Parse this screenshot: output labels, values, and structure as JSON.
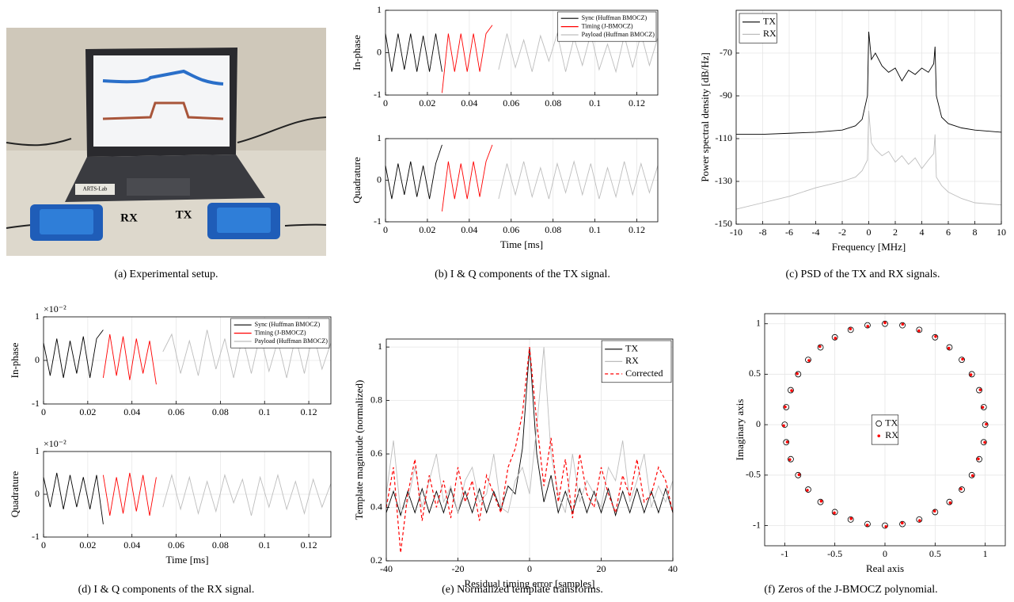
{
  "photo": {
    "caption": "(a) Experimental setup.",
    "labels": {
      "rx": "RX",
      "tx": "TX",
      "lab": "ARTS-Lab"
    }
  },
  "chart_data": [
    {
      "type": "line",
      "ylabel": "In-phase",
      "xlim": [
        0,
        0.13
      ],
      "xticks": [
        0,
        0.02,
        0.04,
        0.06,
        0.08,
        0.1,
        0.12
      ],
      "ylim": [
        -1,
        1
      ],
      "yticks": [
        -1,
        0,
        1
      ],
      "grid": true,
      "legend": "top-right",
      "series": [
        {
          "name": "Sync (Huffman BMOCZ)",
          "color": "#000000",
          "x": [
            0,
            0.003,
            0.006,
            0.009,
            0.012,
            0.015,
            0.018,
            0.021,
            0.024,
            0.027
          ],
          "values": [
            0.45,
            -0.45,
            0.45,
            -0.4,
            0.45,
            -0.45,
            0.4,
            -0.45,
            0.45,
            -0.45
          ]
        },
        {
          "name": "Timing (J-BMOCZ)",
          "color": "#ff0000",
          "x": [
            0.027,
            0.03,
            0.033,
            0.036,
            0.039,
            0.042,
            0.045,
            0.048,
            0.051
          ],
          "values": [
            -0.95,
            0.45,
            -0.45,
            0.45,
            -0.45,
            0.45,
            -0.45,
            0.45,
            0.65
          ]
        },
        {
          "name": "Payload (Huffman BMOCZ)",
          "color": "#bdbdbd",
          "x": [
            0.054,
            0.058,
            0.062,
            0.066,
            0.07,
            0.074,
            0.078,
            0.082,
            0.086,
            0.09,
            0.094,
            0.098,
            0.102,
            0.106,
            0.11,
            0.114,
            0.118,
            0.122,
            0.126,
            0.13
          ],
          "values": [
            -0.4,
            0.45,
            -0.35,
            0.3,
            -0.45,
            0.4,
            -0.2,
            0.45,
            -0.45,
            0.35,
            -0.3,
            0.45,
            -0.4,
            0.2,
            -0.45,
            0.4,
            -0.35,
            0.45,
            -0.3,
            0.35
          ]
        }
      ]
    },
    {
      "type": "line",
      "ylabel": "Quadrature",
      "xlabel": "Time [ms]",
      "caption": "(b) I & Q components of the TX signal.",
      "xlim": [
        0,
        0.13
      ],
      "xticks": [
        0,
        0.02,
        0.04,
        0.06,
        0.08,
        0.1,
        0.12
      ],
      "ylim": [
        -1,
        1
      ],
      "yticks": [
        -1,
        0,
        1
      ],
      "grid": true,
      "series": [
        {
          "color": "#000000",
          "x": [
            0,
            0.003,
            0.006,
            0.009,
            0.012,
            0.015,
            0.018,
            0.021,
            0.024,
            0.027
          ],
          "values": [
            0.35,
            -0.45,
            0.4,
            -0.35,
            0.45,
            -0.4,
            0.35,
            -0.45,
            0.4,
            0.85
          ]
        },
        {
          "color": "#ff0000",
          "x": [
            0.027,
            0.03,
            0.033,
            0.036,
            0.039,
            0.042,
            0.045,
            0.048,
            0.051
          ],
          "values": [
            -0.75,
            0.45,
            -0.45,
            0.4,
            -0.45,
            0.45,
            -0.4,
            0.45,
            0.85
          ]
        },
        {
          "color": "#bdbdbd",
          "x": [
            0.054,
            0.058,
            0.062,
            0.066,
            0.07,
            0.074,
            0.078,
            0.082,
            0.086,
            0.09,
            0.094,
            0.098,
            0.102,
            0.106,
            0.11,
            0.114,
            0.118,
            0.122,
            0.126,
            0.13
          ],
          "values": [
            -0.45,
            0.4,
            -0.35,
            0.45,
            -0.4,
            0.3,
            -0.45,
            0.4,
            -0.3,
            0.45,
            -0.35,
            0.4,
            -0.45,
            0.3,
            -0.4,
            0.45,
            -0.35,
            0.4,
            -0.3,
            0.35
          ]
        }
      ]
    },
    {
      "type": "line",
      "ylabel": "Power spectral density [dB/Hz]",
      "xlabel": "Frequency [MHz]",
      "caption": "(c) PSD of the TX and RX signals.",
      "xlim": [
        -10,
        10
      ],
      "xticks": [
        -10,
        -8,
        -6,
        -4,
        -2,
        0,
        2,
        4,
        6,
        8,
        10
      ],
      "ylim": [
        -150,
        -50
      ],
      "yticks": [
        -150,
        -130,
        -110,
        -90,
        -70
      ],
      "grid": true,
      "legend": "top-left",
      "x": [
        -10,
        -8,
        -6,
        -4,
        -2,
        -1,
        -0.5,
        -0.1,
        0,
        0.2,
        0.5,
        1,
        1.5,
        2,
        2.5,
        3,
        3.5,
        4,
        4.5,
        4.9,
        5,
        5.1,
        5.5,
        6,
        7,
        8,
        10
      ],
      "series": [
        {
          "name": "TX",
          "color": "#000000",
          "values": [
            -108,
            -108,
            -107.5,
            -107,
            -106,
            -104,
            -101,
            -90,
            -60,
            -73,
            -70,
            -76,
            -79,
            -77,
            -83,
            -78,
            -80,
            -77,
            -79,
            -75,
            -67,
            -90,
            -100,
            -103,
            -105,
            -106,
            -107
          ]
        },
        {
          "name": "RX",
          "color": "#bdbdbd",
          "values": [
            -143,
            -140,
            -137,
            -133,
            -130,
            -128,
            -125,
            -120,
            -97,
            -112,
            -115,
            -118,
            -116,
            -121,
            -118,
            -122,
            -119,
            -124,
            -120,
            -117,
            -108,
            -128,
            -132,
            -135,
            -138,
            -140,
            -141
          ]
        }
      ]
    },
    {
      "type": "line",
      "ylabel": "In-phase",
      "y_multiplier": "×10⁻²",
      "xlim": [
        0,
        0.13
      ],
      "xticks": [
        0,
        0.02,
        0.04,
        0.06,
        0.08,
        0.1,
        0.12
      ],
      "ylim": [
        -1,
        1
      ],
      "yticks": [
        -1,
        0,
        1
      ],
      "grid": true,
      "legend": "top-right",
      "series": [
        {
          "name": "Sync (Huffman BMOCZ)",
          "color": "#000000",
          "x": [
            0,
            0.003,
            0.006,
            0.009,
            0.012,
            0.015,
            0.018,
            0.021,
            0.024,
            0.027
          ],
          "values": [
            0.4,
            -0.35,
            0.5,
            -0.4,
            0.45,
            -0.3,
            0.55,
            -0.4,
            0.5,
            0.7
          ]
        },
        {
          "name": "Timing (J-BMOCZ)",
          "color": "#ff0000",
          "x": [
            0.027,
            0.03,
            0.033,
            0.036,
            0.039,
            0.042,
            0.045,
            0.048,
            0.051
          ],
          "values": [
            -0.4,
            0.6,
            -0.35,
            0.55,
            -0.45,
            0.5,
            -0.3,
            0.45,
            -0.55
          ]
        },
        {
          "name": "Payload (Huffman BMOCZ)",
          "color": "#bdbdbd",
          "x": [
            0.054,
            0.058,
            0.062,
            0.066,
            0.07,
            0.074,
            0.078,
            0.082,
            0.086,
            0.09,
            0.094,
            0.098,
            0.102,
            0.106,
            0.11,
            0.114,
            0.118,
            0.122,
            0.126,
            0.13
          ],
          "values": [
            0.2,
            0.6,
            -0.3,
            0.45,
            -0.35,
            0.7,
            -0.2,
            0.5,
            -0.4,
            0.55,
            -0.3,
            0.6,
            -0.25,
            0.45,
            -0.4,
            0.55,
            -0.3,
            0.65,
            -0.2,
            0.4
          ]
        }
      ]
    },
    {
      "type": "line",
      "ylabel": "Quadrature",
      "y_multiplier": "×10⁻²",
      "xlabel": "Time [ms]",
      "caption": "(d) I & Q components of the RX signal.",
      "xlim": [
        0,
        0.13
      ],
      "xticks": [
        0,
        0.02,
        0.04,
        0.06,
        0.08,
        0.1,
        0.12
      ],
      "ylim": [
        -1,
        1
      ],
      "yticks": [
        -1,
        0,
        1
      ],
      "grid": true,
      "series": [
        {
          "color": "#000000",
          "x": [
            0,
            0.003,
            0.006,
            0.009,
            0.012,
            0.015,
            0.018,
            0.021,
            0.024,
            0.027
          ],
          "values": [
            0.4,
            -0.3,
            0.5,
            -0.35,
            0.45,
            -0.3,
            0.4,
            -0.35,
            0.45,
            -0.7
          ]
        },
        {
          "color": "#ff0000",
          "x": [
            0.027,
            0.03,
            0.033,
            0.036,
            0.039,
            0.042,
            0.045,
            0.048,
            0.051
          ],
          "values": [
            0.45,
            -0.5,
            0.4,
            -0.45,
            0.5,
            -0.4,
            0.45,
            -0.5,
            0.4
          ]
        },
        {
          "color": "#bdbdbd",
          "x": [
            0.054,
            0.058,
            0.062,
            0.066,
            0.07,
            0.074,
            0.078,
            0.082,
            0.086,
            0.09,
            0.094,
            0.098,
            0.102,
            0.106,
            0.11,
            0.114,
            0.118,
            0.122,
            0.126,
            0.13
          ],
          "values": [
            -0.3,
            0.45,
            -0.35,
            0.4,
            -0.45,
            0.3,
            -0.4,
            0.45,
            -0.2,
            0.35,
            -0.5,
            0.4,
            -0.3,
            0.45,
            -0.35,
            0.3,
            -0.45,
            0.35,
            -0.3,
            0.25
          ]
        }
      ]
    },
    {
      "type": "line",
      "ylabel": "Template magnitude (normalized)",
      "xlabel": "Residual timing error [samples]",
      "caption": "(e) Normalized template transforms.",
      "xlim": [
        -40,
        40
      ],
      "xticks": [
        -40,
        -20,
        0,
        20,
        40
      ],
      "ylim": [
        0.2,
        1.03
      ],
      "yticks": [
        0.2,
        0.4,
        0.6,
        0.8,
        1
      ],
      "grid": true,
      "legend": "top-right",
      "x": [
        -40,
        -38,
        -36,
        -34,
        -32,
        -30,
        -28,
        -26,
        -24,
        -22,
        -20,
        -18,
        -16,
        -14,
        -12,
        -10,
        -8,
        -6,
        -4,
        -2,
        0,
        2,
        4,
        6,
        8,
        10,
        12,
        14,
        16,
        18,
        20,
        22,
        24,
        26,
        28,
        30,
        32,
        34,
        36,
        38,
        40
      ],
      "series": [
        {
          "name": "TX",
          "color": "#000000",
          "values": [
            0.38,
            0.46,
            0.37,
            0.46,
            0.38,
            0.47,
            0.38,
            0.46,
            0.38,
            0.47,
            0.38,
            0.46,
            0.38,
            0.47,
            0.38,
            0.46,
            0.39,
            0.48,
            0.45,
            0.62,
            1,
            0.6,
            0.42,
            0.52,
            0.38,
            0.46,
            0.38,
            0.47,
            0.38,
            0.46,
            0.38,
            0.47,
            0.37,
            0.46,
            0.38,
            0.47,
            0.38,
            0.46,
            0.38,
            0.47,
            0.38
          ]
        },
        {
          "name": "RX",
          "color": "#bdbdbd",
          "values": [
            0.45,
            0.65,
            0.38,
            0.42,
            0.55,
            0.4,
            0.5,
            0.6,
            0.42,
            0.48,
            0.38,
            0.5,
            0.55,
            0.42,
            0.45,
            0.6,
            0.4,
            0.38,
            0.5,
            0.55,
            0.45,
            0.7,
            1,
            0.6,
            0.45,
            0.38,
            0.6,
            0.42,
            0.5,
            0.45,
            0.4,
            0.55,
            0.5,
            0.65,
            0.42,
            0.5,
            0.6,
            0.4,
            0.48,
            0.42,
            0.5
          ]
        },
        {
          "name": "Corrected",
          "color": "#ff0000",
          "dash": true,
          "values": [
            0.4,
            0.55,
            0.23,
            0.45,
            0.58,
            0.35,
            0.52,
            0.4,
            0.5,
            0.36,
            0.55,
            0.42,
            0.5,
            0.35,
            0.52,
            0.45,
            0.38,
            0.55,
            0.62,
            0.75,
            1,
            0.72,
            0.48,
            0.66,
            0.42,
            0.58,
            0.36,
            0.6,
            0.45,
            0.4,
            0.55,
            0.45,
            0.38,
            0.52,
            0.44,
            0.58,
            0.42,
            0.45,
            0.55,
            0.5,
            0.38
          ]
        }
      ]
    },
    {
      "type": "scatter",
      "ylabel": "Imaginary axis",
      "xlabel": "Real axis",
      "caption": "(f) Zeros of the J-BMOCZ polynomial.",
      "xlim": [
        -1.2,
        1.2
      ],
      "xticks": [
        -1,
        -0.5,
        0,
        0.5,
        1
      ],
      "ylim": [
        -1.2,
        1.1
      ],
      "yticks": [
        -1,
        -0.5,
        0,
        0.5,
        1
      ],
      "grid": true,
      "legend": "center",
      "series": [
        {
          "name": "TX",
          "color": "#000000",
          "marker": "circle",
          "x": [
            1,
            0.985,
            0.94,
            0.866,
            0.766,
            0.643,
            0.5,
            0.342,
            0.174,
            0,
            -0.174,
            -0.342,
            -0.5,
            -0.643,
            -0.766,
            -0.866,
            -0.94,
            -0.985,
            -1,
            -0.985,
            -0.94,
            -0.866,
            -0.766,
            -0.643,
            -0.5,
            -0.342,
            -0.174,
            0,
            0.174,
            0.342,
            0.5,
            0.643,
            0.766,
            0.866,
            0.94,
            0.985
          ],
          "values": [
            0,
            0.174,
            0.342,
            0.5,
            0.643,
            0.766,
            0.866,
            0.94,
            0.985,
            1,
            0.985,
            0.94,
            0.866,
            0.766,
            0.643,
            0.5,
            0.342,
            0.174,
            0,
            -0.174,
            -0.342,
            -0.5,
            -0.643,
            -0.766,
            -0.866,
            -0.94,
            -0.985,
            -1,
            -0.985,
            -0.94,
            -0.866,
            -0.766,
            -0.643,
            -0.5,
            -0.342,
            -0.174
          ]
        },
        {
          "name": "RX",
          "color": "#ff0000",
          "marker": "dot",
          "x": [
            1.01,
            0.975,
            0.95,
            0.857,
            0.774,
            0.637,
            0.505,
            0.339,
            0.176,
            0,
            -0.172,
            -0.345,
            -0.495,
            -0.649,
            -0.758,
            -0.875,
            -0.931,
            -0.995,
            -1.01,
            -0.975,
            -0.949,
            -0.857,
            -0.774,
            -0.636,
            -0.505,
            -0.338,
            -0.176,
            0.01,
            0.172,
            0.346,
            0.495,
            0.65,
            0.758,
            0.874,
            0.931,
            0.995
          ],
          "values": [
            0.005,
            0.172,
            0.345,
            0.495,
            0.649,
            0.758,
            0.874,
            0.931,
            0.995,
            1.01,
            0.975,
            0.949,
            0.857,
            0.774,
            0.636,
            0.505,
            0.338,
            0.176,
            -0.01,
            -0.172,
            -0.346,
            -0.495,
            -0.65,
            -0.758,
            -0.874,
            -0.931,
            -0.995,
            -1.01,
            -0.975,
            -0.95,
            -0.857,
            -0.774,
            -0.637,
            -0.505,
            -0.339,
            -0.176
          ]
        }
      ]
    }
  ]
}
